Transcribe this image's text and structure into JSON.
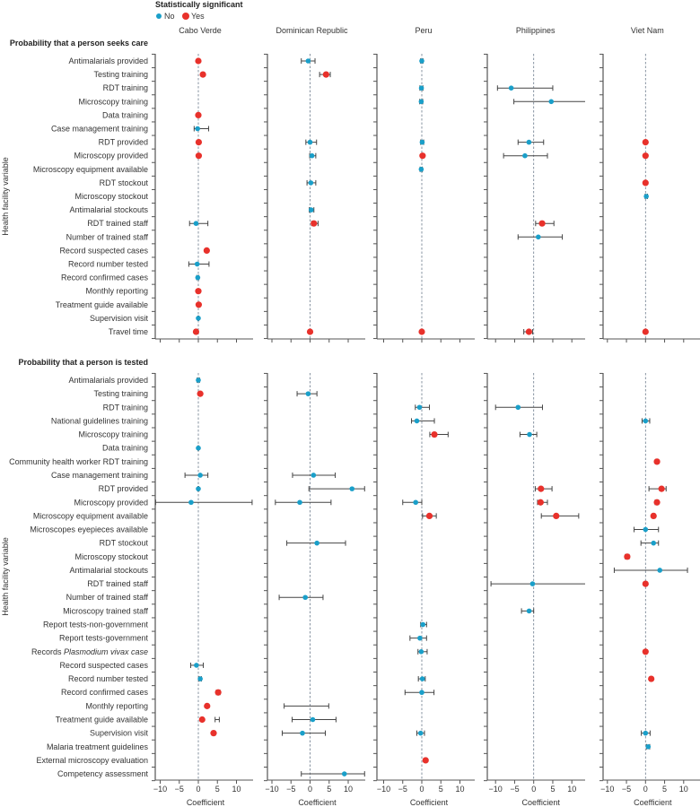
{
  "chart_data": {
    "type": "forest",
    "legend_title": "Statistically significant",
    "legend": [
      {
        "label": "No",
        "color": "#1a9fc9"
      },
      {
        "label": "Yes",
        "color": "#e8312b"
      }
    ],
    "legend_placement": "top-center",
    "ylabel": "Health facility variable",
    "xlabel": "Coefficient",
    "xticks": [
      -10,
      -5,
      0,
      5,
      10
    ],
    "xlim": [
      -11.2,
      14.3
    ],
    "countries": [
      "Cabo Verde",
      "Dominican Republic",
      "Peru",
      "Philippines",
      "Viet Nam"
    ],
    "estimate_format": "[row_index, estimate, ci_low, ci_high, significant(1=yes)]",
    "panels": [
      {
        "title": "Probability that a person seeks care",
        "variables": [
          "Antimalarials provided",
          "Testing training",
          "RDT training",
          "Microscopy training",
          "Data training",
          "Case management training",
          "RDT provided",
          "Microscopy provided",
          "Microscopy equipment available",
          "RDT stockout",
          "Microscopy stockout",
          "Antimalarial stockouts",
          "RDT trained staff",
          "Number of trained staff",
          "Record suspected cases",
          "Record number tested",
          "Record confirmed cases",
          "Monthly reporting",
          "Treatment guide available",
          "Supervision visit",
          "Travel time"
        ],
        "estimates": [
          [
            [
              0,
              0,
              -0.1,
              0.1,
              1
            ],
            [
              1,
              1.2,
              1.0,
              1.4,
              1
            ],
            [
              4,
              0,
              -0.1,
              0.1,
              1
            ],
            [
              5,
              -0.2,
              -1.1,
              2.7,
              0
            ],
            [
              6,
              0.1,
              0,
              0.2,
              1
            ],
            [
              7,
              0.1,
              0,
              0.2,
              1
            ],
            [
              12,
              -0.6,
              -2.3,
              2.5,
              0
            ],
            [
              14,
              2.2,
              2.0,
              2.4,
              1
            ],
            [
              15,
              -0.3,
              -2.5,
              2.8,
              0
            ],
            [
              16,
              -0.15,
              -0.4,
              0.1,
              0
            ],
            [
              17,
              0,
              -0.1,
              0.1,
              1
            ],
            [
              18,
              0.1,
              0,
              0.2,
              1
            ],
            [
              19,
              0,
              -0.1,
              0.1,
              0
            ],
            [
              20,
              -0.6,
              -1.0,
              -0.2,
              1
            ]
          ],
          [
            [
              0,
              -0.5,
              -2.3,
              1.3,
              0
            ],
            [
              1,
              4.2,
              2.5,
              5.3,
              1
            ],
            [
              6,
              0,
              -1.1,
              1.7,
              0
            ],
            [
              7,
              0.5,
              -0.1,
              1.5,
              0
            ],
            [
              9,
              0.2,
              -0.8,
              1.5,
              0
            ],
            [
              11,
              0.3,
              -0.2,
              1.0,
              0
            ],
            [
              12,
              1.0,
              0.4,
              2.1,
              1
            ],
            [
              20,
              0,
              -0.1,
              0.1,
              1
            ]
          ],
          [
            [
              0,
              0,
              -0.3,
              0.3,
              0
            ],
            [
              2,
              -0.1,
              -0.5,
              0.3,
              0
            ],
            [
              3,
              -0.15,
              -0.55,
              0.25,
              0
            ],
            [
              6,
              0.1,
              -0.3,
              0.5,
              0
            ],
            [
              7,
              0.2,
              0,
              0.4,
              1
            ],
            [
              8,
              -0.15,
              -0.45,
              0.15,
              0
            ],
            [
              20,
              0,
              -0.1,
              0.1,
              1
            ]
          ],
          [
            [
              2,
              -5.9,
              -9.5,
              5.0,
              0
            ],
            [
              3,
              4.6,
              -5.2,
              14.2,
              0
            ],
            [
              6,
              -1.25,
              -4.1,
              2.6,
              0
            ],
            [
              7,
              -2.3,
              -7.9,
              3.6,
              0
            ],
            [
              12,
              2.2,
              0.5,
              5.3,
              1
            ],
            [
              13,
              1.2,
              -4.1,
              7.5,
              0
            ],
            [
              20,
              -1.25,
              -2.6,
              -0.3,
              1
            ]
          ],
          [
            [
              6,
              0,
              -0.1,
              0.1,
              1
            ],
            [
              7,
              0,
              -0.1,
              0.1,
              1
            ],
            [
              9,
              0,
              -0.1,
              0.1,
              1
            ],
            [
              10,
              0.2,
              -0.1,
              0.5,
              0
            ],
            [
              20,
              0,
              -0.1,
              0.1,
              1
            ]
          ]
        ]
      },
      {
        "title": "Probability that a person is tested",
        "variables": [
          "Antimalarials provided",
          "Testing training",
          "RDT training",
          "National guidelines training",
          "Microscopy training",
          "Data training",
          "Community health worker RDT training",
          "Case management training",
          "RDT provided",
          "Microscopy provided",
          "Microscopy equipment available",
          "Microscopes eyepieces available",
          "RDT stockout",
          "Microscopy stockout",
          "Antimalarial stockouts",
          "RDT trained staff",
          "Number of trained staff",
          "Microscopy trained staff",
          "Report tests-non-government",
          "Report tests-government",
          "Records Plasmodium vivax case",
          "Record suspected cases",
          "Record number tested",
          "Record confirmed cases",
          "Monthly reporting",
          "Treatment guide available",
          "Supervision visit",
          "Malaria treatment guidelines",
          "External microscopy evaluation",
          "Competency assessment"
        ],
        "italic_variable_part": {
          "row": 20,
          "prefix": "Records ",
          "italic": "Plasmodium vivax case"
        },
        "estimates": [
          [
            [
              0,
              0,
              -0.3,
              0.3,
              0
            ],
            [
              1,
              0.5,
              0.3,
              0.7,
              1
            ],
            [
              5,
              0,
              -0.1,
              0.1,
              0
            ],
            [
              7,
              0.5,
              -3.5,
              2.5,
              0
            ],
            [
              8,
              0,
              -0.1,
              0.1,
              0
            ],
            [
              9,
              -1.9,
              -11.2,
              14.1,
              0
            ],
            [
              21,
              -0.5,
              -2.0,
              1.3,
              0
            ],
            [
              22,
              0.5,
              0.2,
              0.8,
              0
            ],
            [
              23,
              5.2,
              4.7,
              5.7,
              1
            ],
            [
              24,
              2.3,
              2.0,
              2.6,
              1
            ],
            [
              25,
              1.0,
              4.4,
              5.5,
              1
            ],
            [
              26,
              4.0,
              3.6,
              4.4,
              1
            ]
          ],
          [
            [
              1,
              -0.5,
              -3.4,
              1.8,
              0
            ],
            [
              7,
              0.9,
              -4.6,
              6.6,
              0
            ],
            [
              8,
              11.0,
              -0.3,
              14.3,
              0
            ],
            [
              9,
              -2.7,
              -9.1,
              5.5,
              0
            ],
            [
              12,
              1.8,
              -6.1,
              9.3,
              0
            ],
            [
              16,
              -1.25,
              -8.1,
              3.4,
              0
            ],
            [
              24,
              null,
              -6.8,
              4.9,
              0
            ],
            [
              25,
              0.7,
              -4.7,
              6.8,
              0
            ],
            [
              26,
              -2.0,
              -7.3,
              4.0,
              0
            ],
            [
              29,
              9.0,
              -2.3,
              14.3,
              0
            ]
          ],
          [
            [
              2,
              -0.6,
              -1.7,
              2.0,
              0
            ],
            [
              3,
              -1.3,
              -2.7,
              3.3,
              0
            ],
            [
              4,
              3.3,
              2.1,
              6.9,
              1
            ],
            [
              9,
              -1.6,
              -5.0,
              0,
              0
            ],
            [
              10,
              2.0,
              0.2,
              3.8,
              1
            ],
            [
              18,
              0.3,
              -0.3,
              1.25,
              0
            ],
            [
              19,
              -0.5,
              -3.1,
              1.25,
              0
            ],
            [
              20,
              -0.15,
              -1.0,
              1.4,
              0
            ],
            [
              22,
              0.15,
              -0.9,
              0.9,
              0
            ],
            [
              23,
              0,
              -4.4,
              3.2,
              0
            ],
            [
              26,
              -0.3,
              -1.3,
              0.7,
              0
            ],
            [
              28,
              1.0,
              0.7,
              1.3,
              1
            ]
          ],
          [
            [
              2,
              -4.1,
              -10.0,
              2.3,
              0
            ],
            [
              4,
              -1.1,
              -3.6,
              0.8,
              0
            ],
            [
              8,
              1.9,
              0.4,
              4.8,
              1
            ],
            [
              9,
              1.8,
              1.0,
              3.6,
              1
            ],
            [
              10,
              5.9,
              2.0,
              11.8,
              1
            ],
            [
              15,
              -0.3,
              -11.2,
              14.3,
              0
            ],
            [
              17,
              -1.2,
              -3.2,
              0,
              0
            ]
          ],
          [
            [
              3,
              0,
              -0.9,
              1.1,
              0
            ],
            [
              6,
              3.0,
              2.6,
              3.4,
              1
            ],
            [
              8,
              4.2,
              0.9,
              5.4,
              1
            ],
            [
              9,
              3.0,
              2.5,
              3.4,
              1
            ],
            [
              10,
              2.1,
              1.7,
              2.5,
              1
            ],
            [
              11,
              0,
              -3.0,
              3.4,
              0
            ],
            [
              12,
              2.1,
              -1.2,
              3.4,
              0
            ],
            [
              13,
              -4.8,
              -5.3,
              -4.3,
              1
            ],
            [
              14,
              3.75,
              -8.2,
              11.0,
              0
            ],
            [
              15,
              0,
              -0.1,
              0.1,
              1
            ],
            [
              20,
              0,
              -0.1,
              0.1,
              1
            ],
            [
              22,
              1.5,
              1.2,
              1.8,
              1
            ],
            [
              26,
              0,
              -1.1,
              1.2,
              0
            ],
            [
              27,
              0.7,
              0.3,
              1.1,
              0
            ]
          ]
        ]
      }
    ]
  }
}
